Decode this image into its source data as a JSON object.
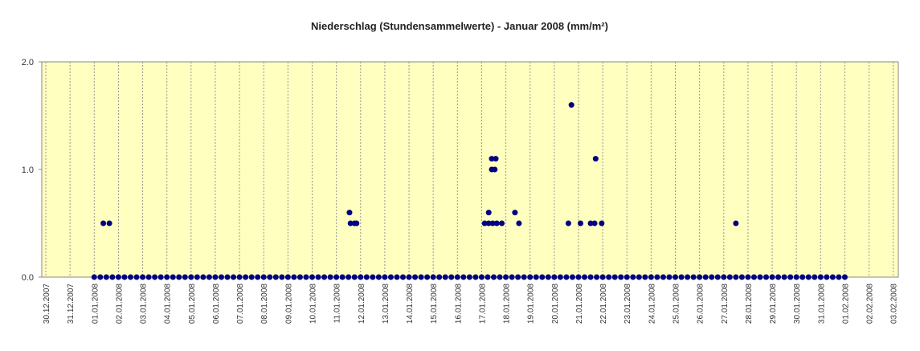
{
  "chart_data": {
    "type": "scatter",
    "title": "Niederschlag (Stundensammelwerte) - Januar 2008 (mm/m²)",
    "xlim": [
      -4,
      845
    ],
    "xticks": [
      {
        "value": 0,
        "label": "30.12.2007"
      },
      {
        "value": 24,
        "label": "31.12.2007"
      },
      {
        "value": 48,
        "label": "01.01.2008"
      },
      {
        "value": 72,
        "label": "02.01.2008"
      },
      {
        "value": 96,
        "label": "03.01.2008"
      },
      {
        "value": 120,
        "label": "04.01.2008"
      },
      {
        "value": 144,
        "label": "05.01.2008"
      },
      {
        "value": 168,
        "label": "06.01.2008"
      },
      {
        "value": 192,
        "label": "07.01.2008"
      },
      {
        "value": 216,
        "label": "08.01.2008"
      },
      {
        "value": 240,
        "label": "09.01.2008"
      },
      {
        "value": 264,
        "label": "10.01.2008"
      },
      {
        "value": 288,
        "label": "11.01.2008"
      },
      {
        "value": 312,
        "label": "12.01.2008"
      },
      {
        "value": 336,
        "label": "13.01.2008"
      },
      {
        "value": 360,
        "label": "14.01.2008"
      },
      {
        "value": 384,
        "label": "15.01.2008"
      },
      {
        "value": 408,
        "label": "16.01.2008"
      },
      {
        "value": 432,
        "label": "17.01.2008"
      },
      {
        "value": 456,
        "label": "18.01.2008"
      },
      {
        "value": 480,
        "label": "19.01.2008"
      },
      {
        "value": 504,
        "label": "20.01.2008"
      },
      {
        "value": 528,
        "label": "21.01.2008"
      },
      {
        "value": 552,
        "label": "22.01.2008"
      },
      {
        "value": 576,
        "label": "23.01.2008"
      },
      {
        "value": 600,
        "label": "24.01.2008"
      },
      {
        "value": 624,
        "label": "25.01.2008"
      },
      {
        "value": 648,
        "label": "26.01.2008"
      },
      {
        "value": 672,
        "label": "27.01.2008"
      },
      {
        "value": 696,
        "label": "28.01.2008"
      },
      {
        "value": 720,
        "label": "29.01.2008"
      },
      {
        "value": 744,
        "label": "30.01.2008"
      },
      {
        "value": 768,
        "label": "31.01.2008"
      },
      {
        "value": 792,
        "label": "01.02.2008"
      },
      {
        "value": 816,
        "label": "02.02.2008"
      },
      {
        "value": 840,
        "label": "03.02.2008"
      }
    ],
    "ylim": [
      0,
      2
    ],
    "yticks": [
      {
        "value": 0,
        "label": "0.0"
      },
      {
        "value": 1,
        "label": "1.0"
      },
      {
        "value": 2,
        "label": "2.0"
      }
    ],
    "grid": true,
    "series": [
      {
        "color": "#000080",
        "x": [
          48,
          54,
          60,
          66,
          72,
          78,
          84,
          90,
          96,
          102,
          108,
          114,
          120,
          126,
          132,
          138,
          144,
          150,
          156,
          162,
          168,
          174,
          180,
          186,
          192,
          198,
          204,
          210,
          216,
          222,
          228,
          234,
          240,
          246,
          252,
          258,
          264,
          270,
          276,
          282,
          288,
          294,
          300,
          306,
          312,
          318,
          324,
          330,
          336,
          342,
          348,
          354,
          360,
          366,
          372,
          378,
          384,
          390,
          396,
          402,
          408,
          414,
          420,
          426,
          432,
          438,
          444,
          450,
          456,
          462,
          468,
          474,
          480,
          486,
          492,
          498,
          504,
          510,
          516,
          522,
          528,
          534,
          540,
          546,
          552,
          558,
          564,
          570,
          576,
          582,
          588,
          594,
          600,
          606,
          612,
          618,
          624,
          630,
          636,
          642,
          648,
          654,
          660,
          666,
          672,
          678,
          684,
          690,
          696,
          702,
          708,
          714,
          720,
          726,
          732,
          738,
          744,
          750,
          756,
          762,
          768,
          774,
          780,
          786,
          792
        ],
        "values": [
          0,
          0,
          0,
          0,
          0,
          0,
          0,
          0,
          0,
          0,
          0,
          0,
          0,
          0,
          0,
          0,
          0,
          0,
          0,
          0,
          0,
          0,
          0,
          0,
          0,
          0,
          0,
          0,
          0,
          0,
          0,
          0,
          0,
          0,
          0,
          0,
          0,
          0,
          0,
          0,
          0,
          0,
          0,
          0,
          0,
          0,
          0,
          0,
          0,
          0,
          0,
          0,
          0,
          0,
          0,
          0,
          0,
          0,
          0,
          0,
          0,
          0,
          0,
          0,
          0,
          0,
          0,
          0,
          0,
          0,
          0,
          0,
          0,
          0,
          0,
          0,
          0,
          0,
          0,
          0,
          0,
          0,
          0,
          0,
          0,
          0,
          0,
          0,
          0,
          0,
          0,
          0,
          0,
          0,
          0,
          0,
          0,
          0,
          0,
          0,
          0,
          0,
          0,
          0,
          0,
          0,
          0,
          0,
          0,
          0,
          0,
          0,
          0,
          0,
          0,
          0,
          0,
          0,
          0,
          0,
          0,
          0,
          0,
          0,
          0
        ]
      },
      {
        "color": "#000080",
        "x": [
          57,
          63,
          301,
          302,
          306,
          308,
          435,
          439,
          439,
          442,
          442,
          445,
          446,
          443,
          447,
          452,
          465,
          469,
          521,
          518,
          530,
          540,
          544,
          545,
          551,
          684
        ],
        "values": [
          0.5,
          0.5,
          0.6,
          0.5,
          0.5,
          0.5,
          0.5,
          0.6,
          0.5,
          1.0,
          1.1,
          1.0,
          1.1,
          0.5,
          0.5,
          0.5,
          0.6,
          0.5,
          1.6,
          0.5,
          0.5,
          0.5,
          0.5,
          1.1,
          0.5,
          0.5
        ]
      }
    ]
  }
}
